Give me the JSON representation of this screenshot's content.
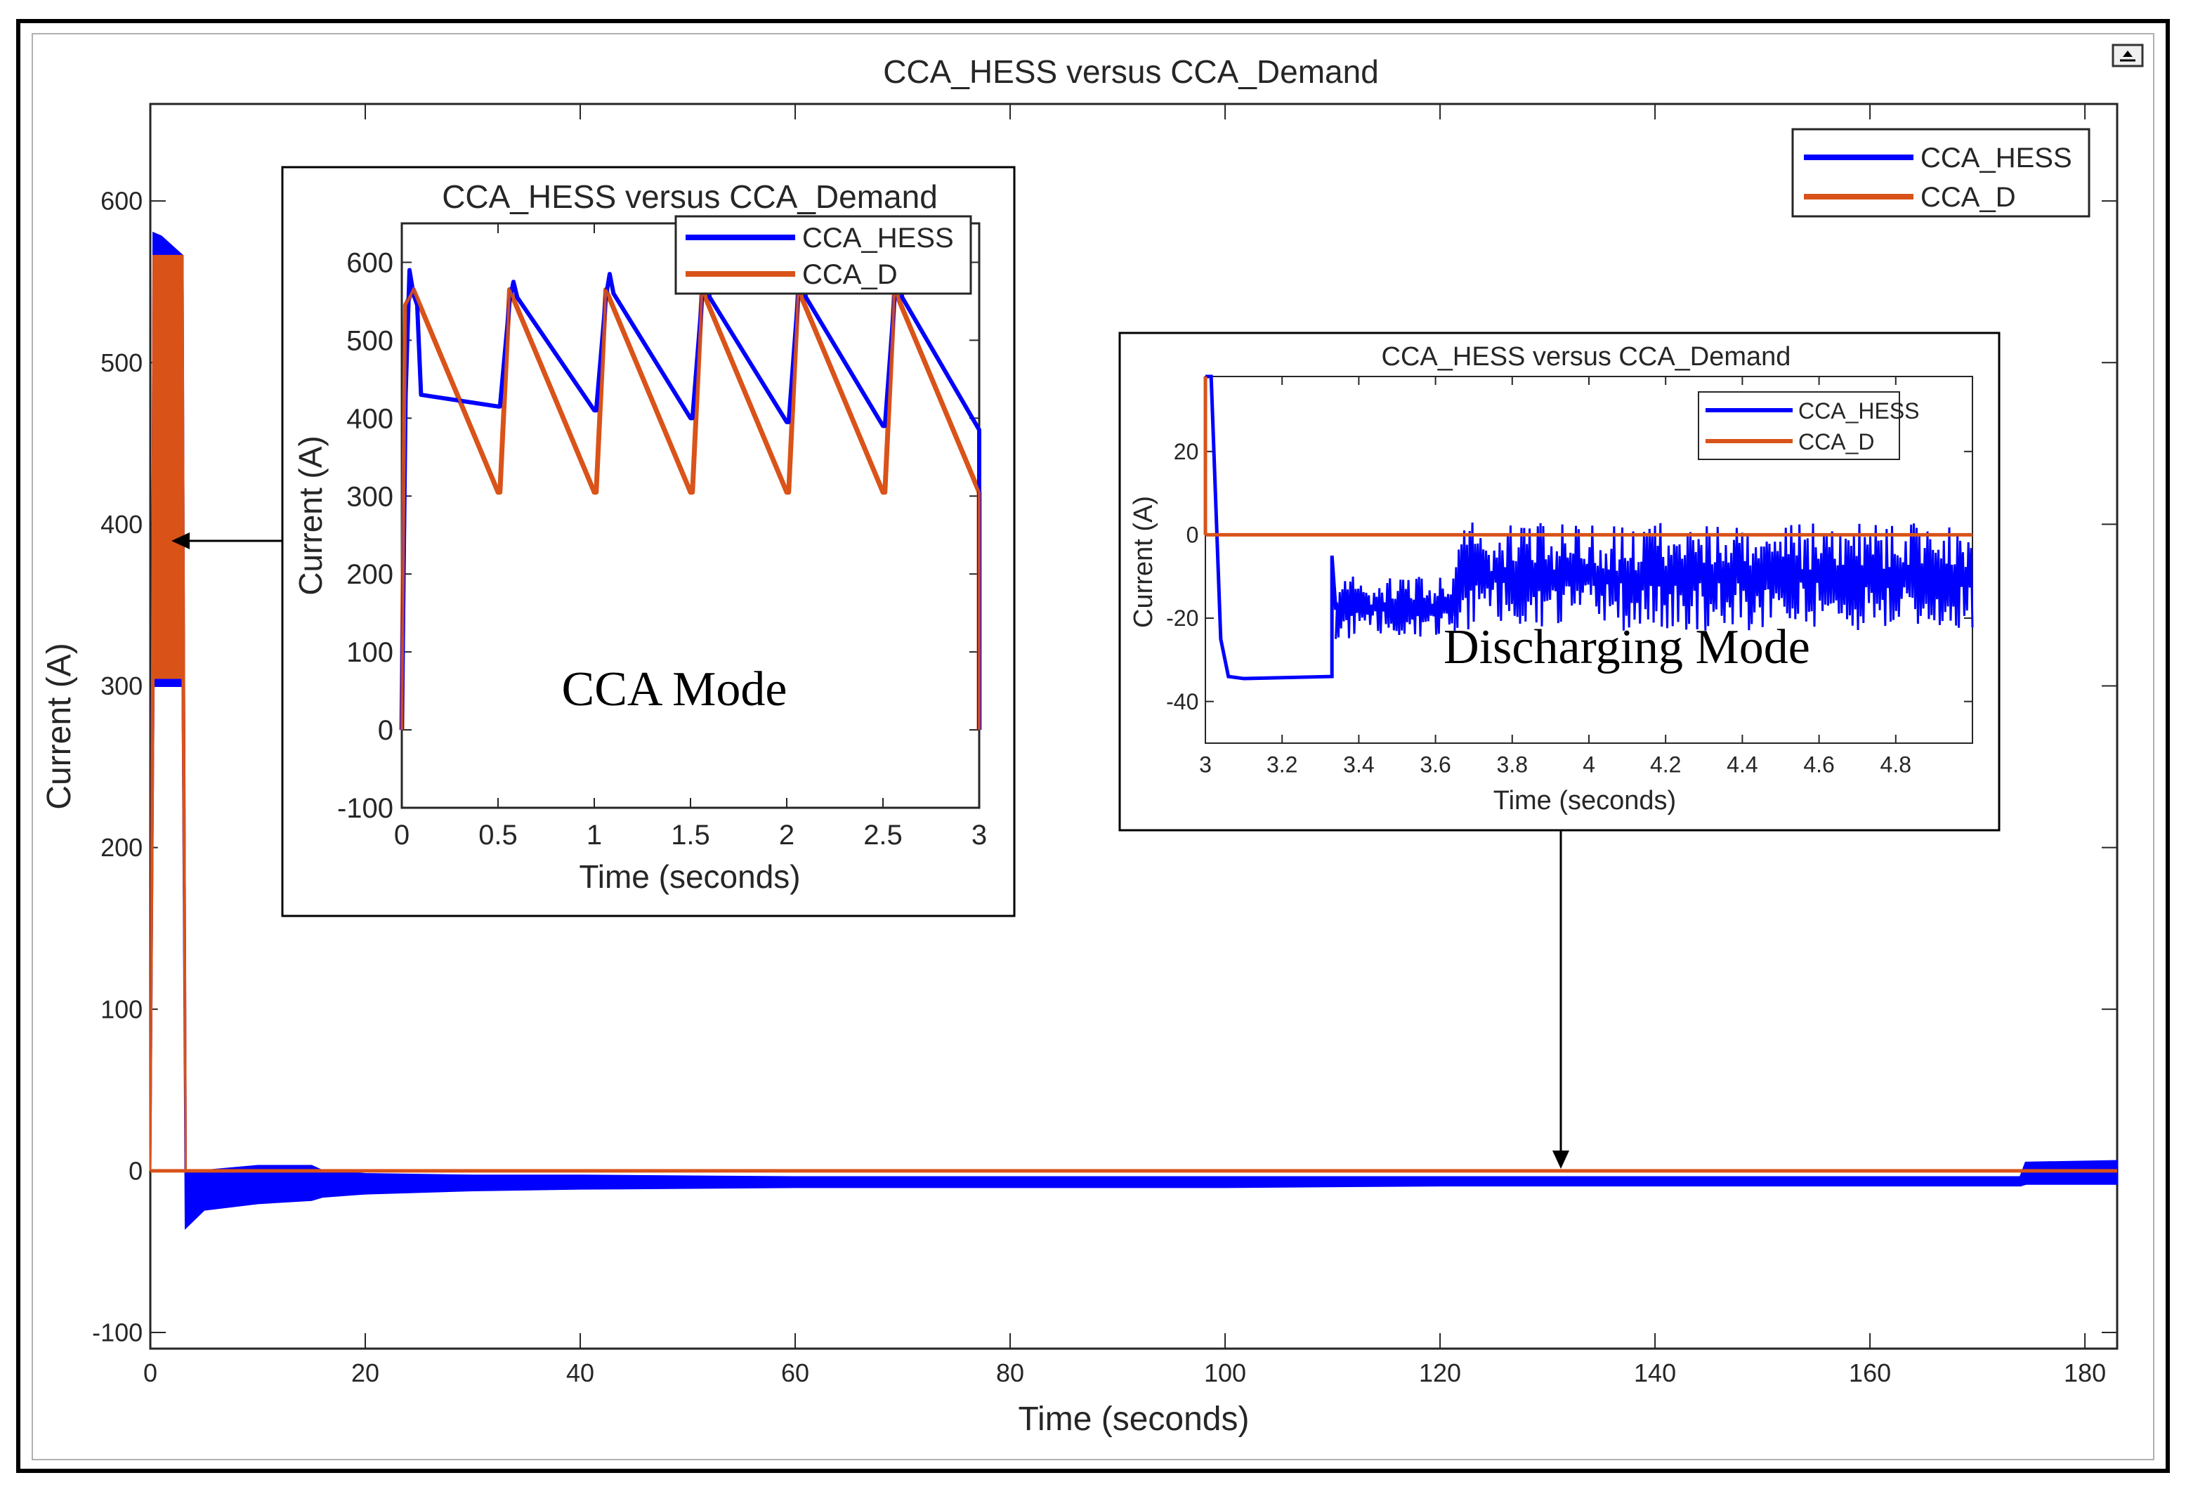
{
  "window": {
    "export_icon": "export-arrow-icon"
  },
  "colors": {
    "hess": "#0000ff",
    "demand": "#d95319",
    "axis": "#262626",
    "frame": "#000000"
  },
  "chart_data": [
    {
      "id": "main",
      "type": "line",
      "title": "CCA_HESS versus CCA_Demand",
      "xlabel": "Time (seconds)",
      "ylabel": "Current (A)",
      "xlim": [
        0,
        183
      ],
      "ylim": [
        -110,
        660
      ],
      "xticks": [
        0,
        20,
        40,
        60,
        80,
        100,
        120,
        140,
        160,
        180
      ],
      "yticks": [
        -100,
        0,
        100,
        200,
        300,
        400,
        500,
        600
      ],
      "legend": {
        "placement": "top-right",
        "entries": [
          "CCA_HESS",
          "CCA_D"
        ]
      },
      "series": [
        {
          "name": "CCA_HESS",
          "envelope_x": [
            0,
            0.3,
            1,
            2,
            3,
            3.3,
            5,
            10,
            15,
            16,
            20,
            30,
            40,
            60,
            80,
            100,
            120,
            140,
            160,
            170,
            174,
            174.5,
            183
          ],
          "upper": [
            0,
            580,
            578,
            572,
            566,
            0,
            0,
            3,
            3,
            0,
            -2,
            -3,
            -3,
            -4,
            -4,
            -4,
            -4,
            -4,
            -4,
            -4,
            -4,
            5,
            6
          ],
          "lower": [
            0,
            300,
            300,
            300,
            300,
            -35,
            -24,
            -20,
            -18,
            -16,
            -14,
            -12,
            -11,
            -10,
            -10,
            -10,
            -9,
            -9,
            -9,
            -9,
            -9,
            -8,
            -8
          ]
        },
        {
          "name": "CCA_D",
          "envelope_x": [
            0,
            0.3,
            1,
            2,
            3,
            3.3,
            183
          ],
          "upper": [
            0,
            566,
            566,
            566,
            566,
            0,
            0
          ],
          "lower": [
            0,
            305,
            305,
            305,
            305,
            0,
            0
          ]
        }
      ]
    },
    {
      "id": "inset_cca",
      "type": "line",
      "title": "CCA_HESS versus CCA_Demand",
      "xlabel": "Time (seconds)",
      "ylabel": "Current (A)",
      "xlim": [
        0,
        3
      ],
      "ylim": [
        -100,
        650
      ],
      "xticks": [
        0,
        0.5,
        1,
        1.5,
        2,
        2.5,
        3
      ],
      "xtick_labels": [
        "0",
        "0.5",
        "1",
        "1.5",
        "2",
        "2.5",
        "3"
      ],
      "yticks": [
        -100,
        0,
        100,
        200,
        300,
        400,
        500,
        600
      ],
      "legend": {
        "placement": "top-right",
        "entries": [
          "CCA_HESS",
          "CCA_D"
        ]
      },
      "annotation": "CCA Mode",
      "series": [
        {
          "name": "CCA_HESS",
          "x": [
            0,
            0.02,
            0.04,
            0.06,
            0.08,
            0.1,
            0.5,
            0.51,
            0.56,
            0.58,
            0.6,
            1.0,
            1.01,
            1.06,
            1.08,
            1.1,
            1.5,
            1.51,
            1.56,
            1.58,
            1.6,
            2.0,
            2.01,
            2.06,
            2.08,
            2.1,
            2.5,
            2.51,
            2.56,
            2.58,
            2.6,
            3.0,
            3.0
          ],
          "y": [
            0,
            430,
            590,
            560,
            545,
            430,
            415,
            415,
            550,
            575,
            555,
            410,
            410,
            555,
            585,
            560,
            400,
            400,
            555,
            580,
            555,
            395,
            395,
            560,
            575,
            555,
            390,
            390,
            555,
            580,
            555,
            385,
            0
          ]
        },
        {
          "name": "CCA_D",
          "x": [
            0,
            0.02,
            0.06,
            0.5,
            0.51,
            0.56,
            1.0,
            1.01,
            1.06,
            1.5,
            1.51,
            1.56,
            2.0,
            2.01,
            2.06,
            2.5,
            2.51,
            2.56,
            3.0,
            3.0
          ],
          "y": [
            0,
            545,
            565,
            305,
            305,
            565,
            305,
            305,
            565,
            305,
            305,
            565,
            305,
            305,
            565,
            305,
            305,
            565,
            305,
            0
          ]
        }
      ]
    },
    {
      "id": "inset_discharge",
      "type": "line",
      "title": "CCA_HESS versus CCA_Demand",
      "xlabel": "Time (seconds)",
      "ylabel": "Current (A)",
      "xlim": [
        3,
        5
      ],
      "ylim": [
        -50,
        38
      ],
      "xticks": [
        3,
        3.2,
        3.4,
        3.6,
        3.8,
        4,
        4.2,
        4.4,
        4.6,
        4.8
      ],
      "xtick_labels": [
        "3",
        "3.2",
        "3.4",
        "3.6",
        "3.8",
        "4",
        "4.2",
        "4.4",
        "4.6",
        "4.8"
      ],
      "yticks": [
        -40,
        -20,
        0,
        20
      ],
      "legend": {
        "placement": "top-right",
        "entries": [
          "CCA_HESS",
          "CCA_D"
        ]
      },
      "annotation": "Discharging Mode",
      "series": [
        {
          "name": "CCA_HESS",
          "segments": [
            {
              "x": [
                3.0,
                3.015,
                3.04,
                3.06,
                3.1,
                3.33,
                3.33,
                3.34
              ],
              "y": [
                38,
                38,
                -25,
                -34,
                -34.5,
                -34,
                -5,
                -18
              ]
            },
            {
              "x_range": [
                3.34,
                3.65
              ],
              "band": [
                -25,
                -10
              ]
            },
            {
              "x_range": [
                3.65,
                5.0
              ],
              "band": [
                -23,
                3
              ]
            }
          ]
        },
        {
          "name": "CCA_D",
          "x": [
            3.0,
            5.0
          ],
          "y": [
            0,
            0
          ]
        }
      ]
    }
  ]
}
